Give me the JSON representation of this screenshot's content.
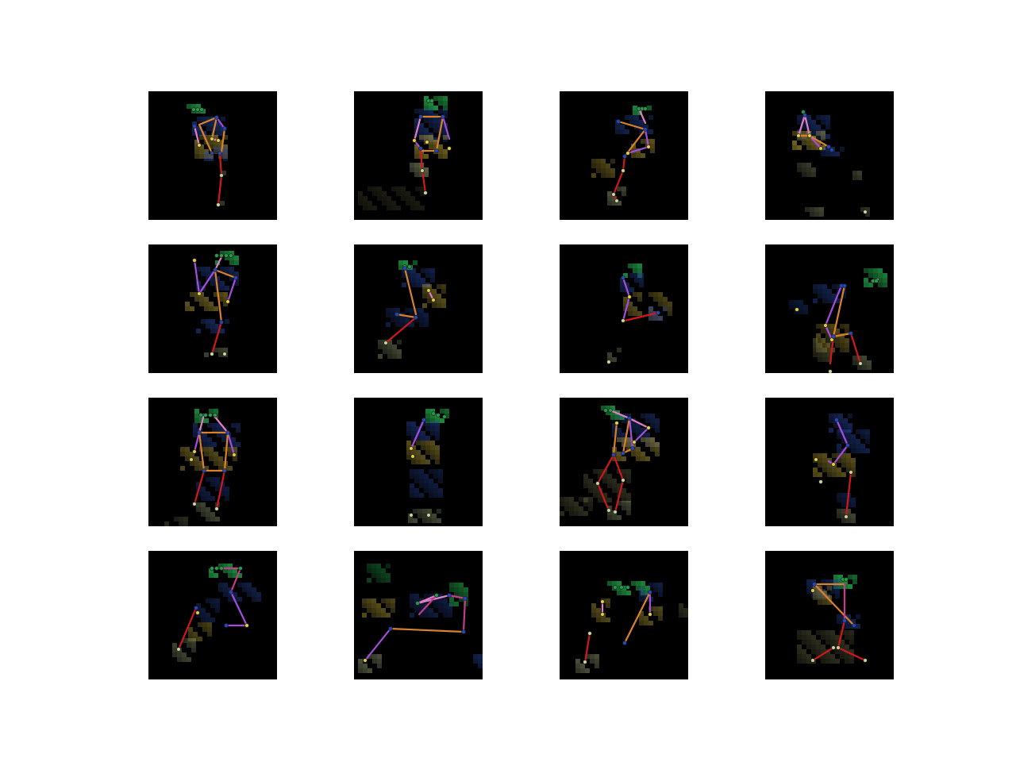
{
  "figure": {
    "rows": 4,
    "cols": 4,
    "colors": {
      "background": "#ffffff",
      "panel": "#000000",
      "red": "#d2181c",
      "orange": "#d9822b",
      "purple": "#a64de0",
      "pink": "#e07fc8",
      "magenta": "#c93a8a",
      "head_joint": "#23a04a",
      "shoulder_joint": "#2348c8",
      "hand_joint": "#e6cf3a",
      "foot_joint": "#c9d79a"
    }
  }
}
